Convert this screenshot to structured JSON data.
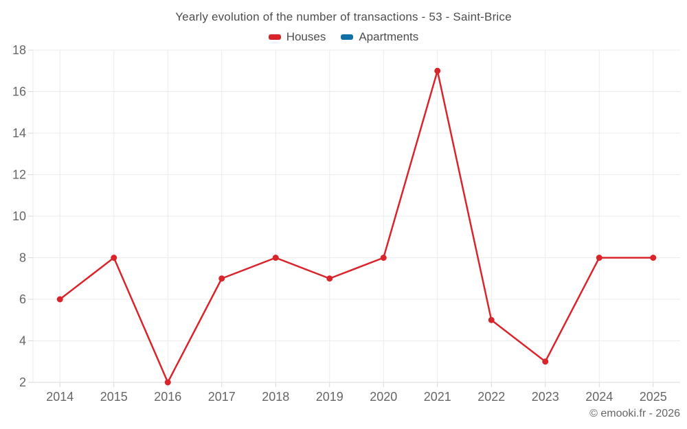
{
  "header": {
    "title": "Yearly evolution of the number of transactions - 53 - Saint-Brice"
  },
  "legend": {
    "items": [
      {
        "label": "Houses",
        "color": "#d9242b"
      },
      {
        "label": "Apartments",
        "color": "#1170a4"
      }
    ]
  },
  "footer": {
    "watermark": "© emooki.fr - 2026"
  },
  "chart_data": {
    "type": "line",
    "title": "Yearly evolution of the number of transactions - 53 - Saint-Brice",
    "categories": [
      "2014",
      "2015",
      "2016",
      "2017",
      "2018",
      "2019",
      "2020",
      "2021",
      "2022",
      "2023",
      "2024",
      "2025"
    ],
    "series": [
      {
        "name": "Houses",
        "color": "#d9242b",
        "values": [
          6,
          8,
          2,
          7,
          8,
          7,
          8,
          17,
          5,
          3,
          8,
          8
        ]
      },
      {
        "name": "Apartments",
        "color": "#1170a4",
        "values": []
      }
    ],
    "ylim": [
      2,
      18
    ],
    "ytick_step": 2,
    "xlabel": "",
    "ylabel": "",
    "grid": true,
    "legend_position": "top",
    "colors": {
      "gridline": "#ebebeb",
      "baseline": "#d9d9d9",
      "tick": "#d9d9d9",
      "axis_text": "#666666"
    }
  }
}
